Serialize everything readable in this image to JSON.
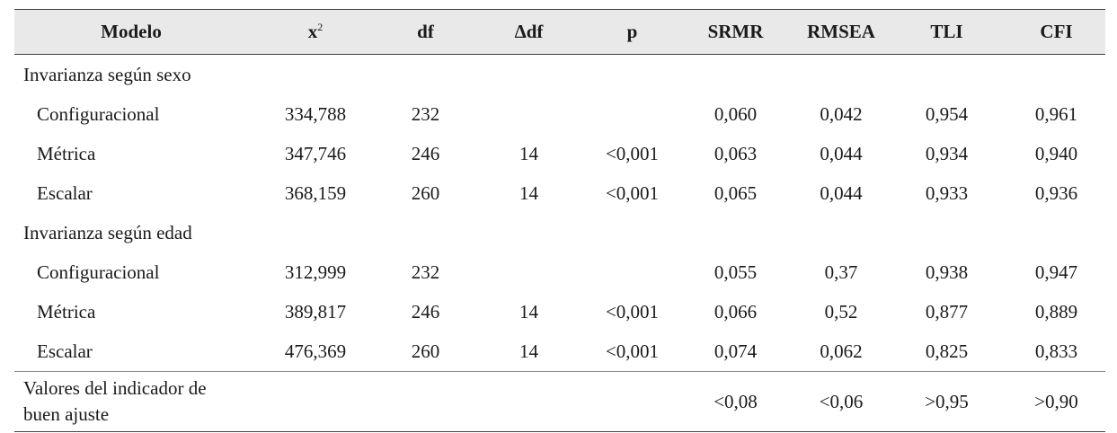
{
  "table": {
    "headers": {
      "modelo": "Modelo",
      "x2_base": "x",
      "x2_sup": "2",
      "df": "df",
      "delta_df": "Δdf",
      "p": "p",
      "srmr": "SRMR",
      "rmsea": "RMSEA",
      "tli": "TLI",
      "cfi": "CFI"
    },
    "groups": [
      {
        "title": "Invarianza según sexo",
        "rows": [
          {
            "model": "Configuracional",
            "x2": "334,788",
            "df": "232",
            "ddf": "",
            "p": "",
            "srmr": "0,060",
            "rmsea": "0,042",
            "tli": "0,954",
            "cfi": "0,961"
          },
          {
            "model": "Métrica",
            "x2": "347,746",
            "df": "246",
            "ddf": "14",
            "p": "<0,001",
            "srmr": "0,063",
            "rmsea": "0,044",
            "tli": "0,934",
            "cfi": "0,940"
          },
          {
            "model": "Escalar",
            "x2": "368,159",
            "df": "260",
            "ddf": "14",
            "p": "<0,001",
            "srmr": "0,065",
            "rmsea": "0,044",
            "tli": "0,933",
            "cfi": "0,936"
          }
        ]
      },
      {
        "title": "Invarianza según edad",
        "rows": [
          {
            "model": "Configuracional",
            "x2": "312,999",
            "df": "232",
            "ddf": "",
            "p": "",
            "srmr": "0,055",
            "rmsea": "0,37",
            "tli": "0,938",
            "cfi": "0,947"
          },
          {
            "model": "Métrica",
            "x2": "389,817",
            "df": "246",
            "ddf": "14",
            "p": "<0,001",
            "srmr": "0,066",
            "rmsea": "0,52",
            "tli": "0,877",
            "cfi": "0,889"
          },
          {
            "model": "Escalar",
            "x2": "476,369",
            "df": "260",
            "ddf": "14",
            "p": "<0,001",
            "srmr": "0,074",
            "rmsea": "0,062",
            "tli": "0,825",
            "cfi": "0,833"
          }
        ]
      }
    ],
    "footer": {
      "label_line1": "Valores del indicador de",
      "label_line2": "buen ajuste",
      "srmr": "<0,08",
      "rmsea": "<0,06",
      "tli": ">0,95",
      "cfi": ">0,90"
    }
  }
}
